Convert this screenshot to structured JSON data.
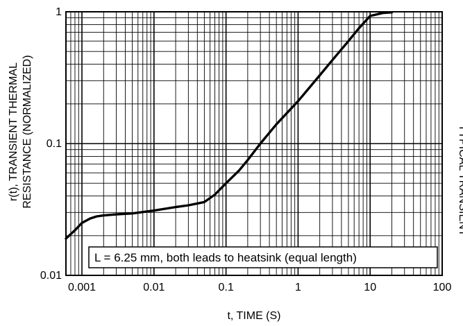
{
  "chart_data": {
    "type": "line",
    "title": "",
    "xlabel": "t, TIME (S)",
    "ylabel_lines": [
      "r(t), TRANSIENT THERMAL",
      "RESISTANCE (NORMALIZED)"
    ],
    "x_scale": "log",
    "y_scale": "log",
    "xlim": [
      0.0006,
      100
    ],
    "ylim": [
      0.01,
      1
    ],
    "grid": true,
    "legend": "none",
    "x_tick_labels": [
      "0.001",
      "0.01",
      "0.1",
      "1",
      "10",
      "100"
    ],
    "x_tick_values": [
      0.001,
      0.01,
      0.1,
      1,
      10,
      100
    ],
    "y_tick_labels": [
      "0.01",
      "0.1",
      "1"
    ],
    "y_tick_values": [
      0.01,
      0.1,
      1
    ],
    "annotation": "L = 6.25 mm, both leads to heatsink (equal length)",
    "right_margin_text": "TYPICAL TRANSIENT",
    "series": [
      {
        "x": [
          0.0006,
          0.0008,
          0.001,
          0.0013,
          0.0016,
          0.002,
          0.003,
          0.005,
          0.01,
          0.02,
          0.03,
          0.05,
          0.07,
          0.1,
          0.15,
          0.2,
          0.3,
          0.5,
          1,
          2,
          3,
          5,
          7,
          10,
          15,
          20
        ],
        "y": [
          0.019,
          0.022,
          0.025,
          0.027,
          0.028,
          0.0285,
          0.029,
          0.0295,
          0.031,
          0.033,
          0.034,
          0.036,
          0.041,
          0.05,
          0.062,
          0.075,
          0.1,
          0.14,
          0.21,
          0.33,
          0.43,
          0.6,
          0.75,
          0.93,
          0.98,
          0.99
        ]
      }
    ]
  }
}
